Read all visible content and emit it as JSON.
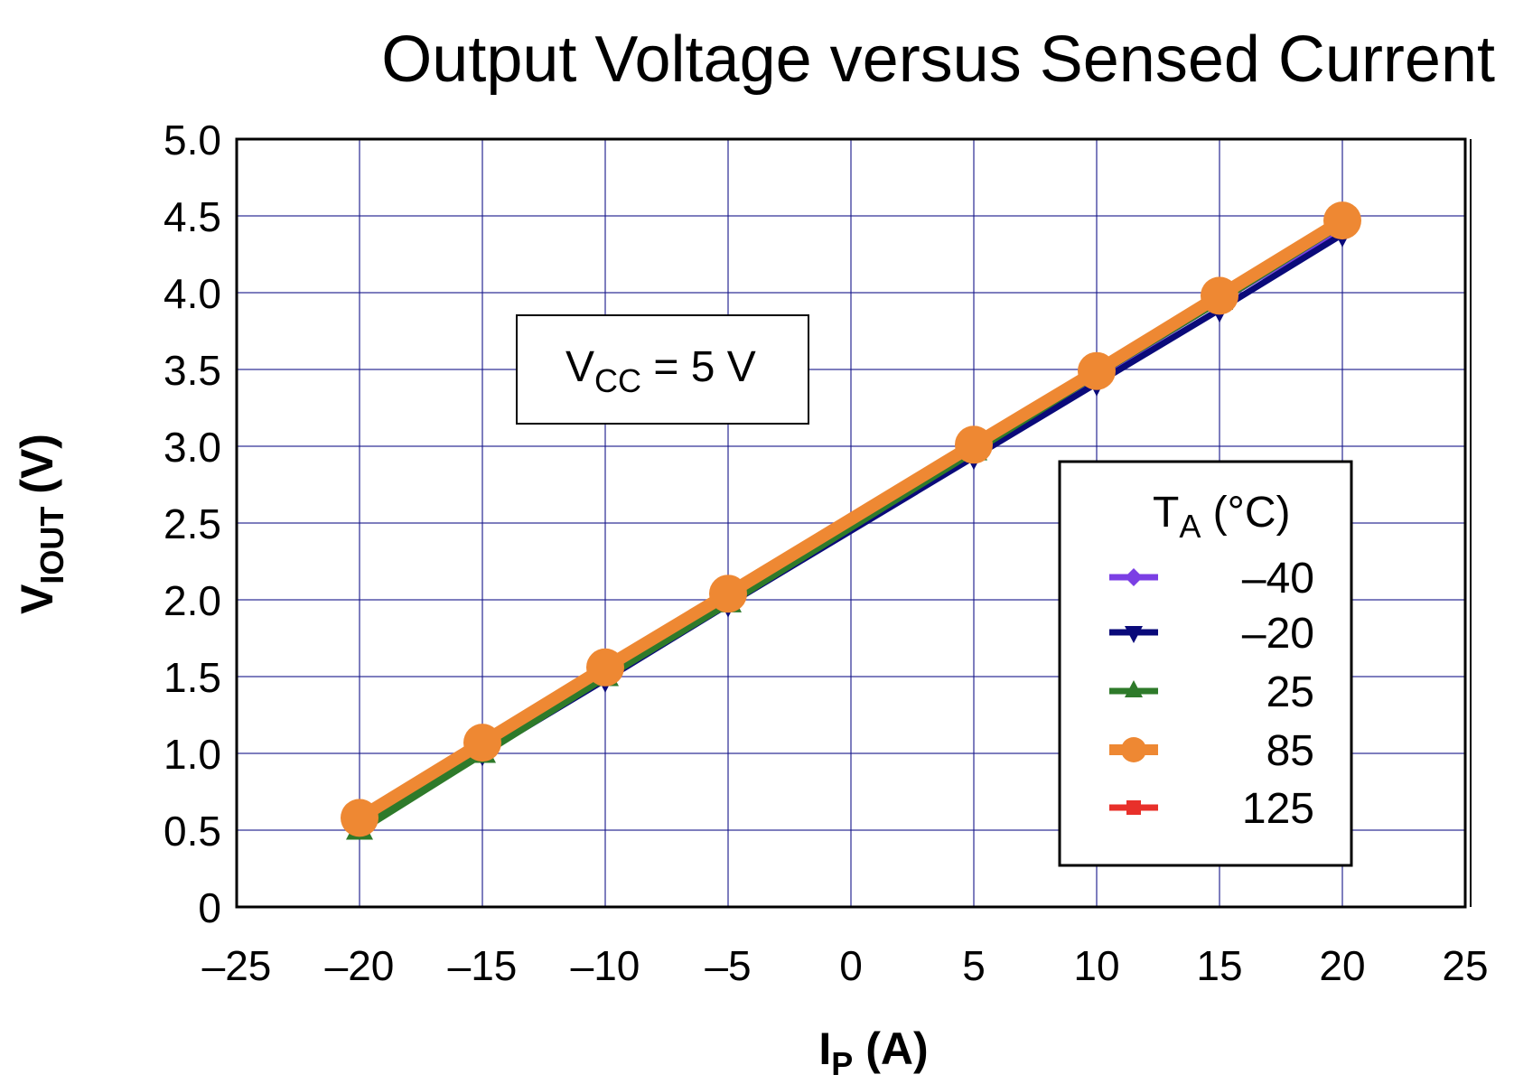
{
  "chart_data": {
    "type": "line",
    "title": "Output Voltage versus Sensed Current",
    "xlabel": {
      "main": "I",
      "sub": "P",
      "rest": " (A)"
    },
    "ylabel": {
      "main": "V",
      "sub": "IOUT",
      "rest": " (V)"
    },
    "xlim": [
      -25,
      25
    ],
    "ylim": [
      0,
      5.0
    ],
    "xticks": [
      -25,
      -20,
      -15,
      -10,
      -5,
      0,
      5,
      10,
      15,
      20,
      25
    ],
    "xtick_labels": [
      "–25",
      "–20",
      "–15",
      "–10",
      "–5",
      "0",
      "5",
      "10",
      "15",
      "20",
      "25"
    ],
    "yticks": [
      0,
      0.5,
      1.0,
      1.5,
      2.0,
      2.5,
      3.0,
      3.5,
      4.0,
      4.5,
      5.0
    ],
    "ytick_labels": [
      "0",
      "0.5",
      "1.0",
      "1.5",
      "2.0",
      "2.5",
      "3.0",
      "3.5",
      "4.0",
      "4.5",
      "5.0"
    ],
    "grid": true,
    "grid_color": "#1a1a8c",
    "annotation": {
      "main": "V",
      "sub": "CC",
      "rest": " = 5 V"
    },
    "legend": {
      "title_main": "T",
      "title_sub": "A",
      "title_rest": " (°C)",
      "placement": "right"
    },
    "x": [
      -20,
      -15,
      -10,
      -5,
      5,
      10,
      15,
      20
    ],
    "series": [
      {
        "name": "–40",
        "color": "#7b3fe4",
        "marker": "diamond",
        "values": [
          0.52,
          1.01,
          1.5,
          1.99,
          2.97,
          3.45,
          3.94,
          4.42
        ]
      },
      {
        "name": "125",
        "color": "#e8302a",
        "marker": "square",
        "values": [
          0.55,
          1.04,
          1.53,
          2.02,
          2.99,
          3.47,
          3.96,
          4.45
        ]
      },
      {
        "name": "–20",
        "color": "#0a0a7a",
        "marker": "triangle-down",
        "values": [
          0.52,
          1.0,
          1.48,
          1.97,
          2.93,
          3.41,
          3.89,
          4.38
        ]
      },
      {
        "name": "25",
        "color": "#2e7a2a",
        "marker": "triangle",
        "values": [
          0.5,
          1.0,
          1.5,
          1.98,
          2.97,
          3.47,
          3.95,
          4.45
        ]
      },
      {
        "name": "85",
        "color": "#ee8833",
        "marker": "circle",
        "values": [
          0.58,
          1.07,
          1.56,
          2.04,
          3.01,
          3.49,
          3.98,
          4.47
        ]
      }
    ],
    "legend_order": [
      "–40",
      "–20",
      "25",
      "85",
      "125"
    ]
  }
}
